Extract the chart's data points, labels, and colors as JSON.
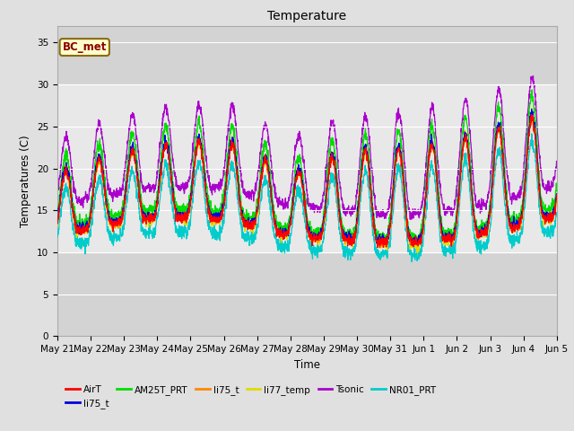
{
  "title": "Temperature",
  "ylabel": "Temperatures (C)",
  "xlabel": "Time",
  "annotation": "BC_met",
  "ylim": [
    0,
    37
  ],
  "yticks": [
    0,
    5,
    10,
    15,
    20,
    25,
    30,
    35
  ],
  "fig_bg": "#e0e0e0",
  "plot_bg": "#d3d3d3",
  "light_band_color": "#e8e8e8",
  "legend_labels": [
    "AirT",
    "li75_t",
    "AM25T_PRT",
    "li75_t",
    "li77_temp",
    "Tsonic",
    "NR01_PRT"
  ],
  "legend_colors": [
    "#ff0000",
    "#0000dd",
    "#00dd00",
    "#ff8800",
    "#dddd00",
    "#aa00cc",
    "#00cccc"
  ],
  "x_tick_labels": [
    "May 21",
    "May 22",
    "May 23",
    "May 24",
    "May 25",
    "May 26",
    "May 27",
    "May 28",
    "May 29",
    "May 30",
    "May 31",
    "Jun 1",
    "Jun 2",
    "Jun 3",
    "Jun 4",
    "Jun 5"
  ],
  "n_days": 15
}
